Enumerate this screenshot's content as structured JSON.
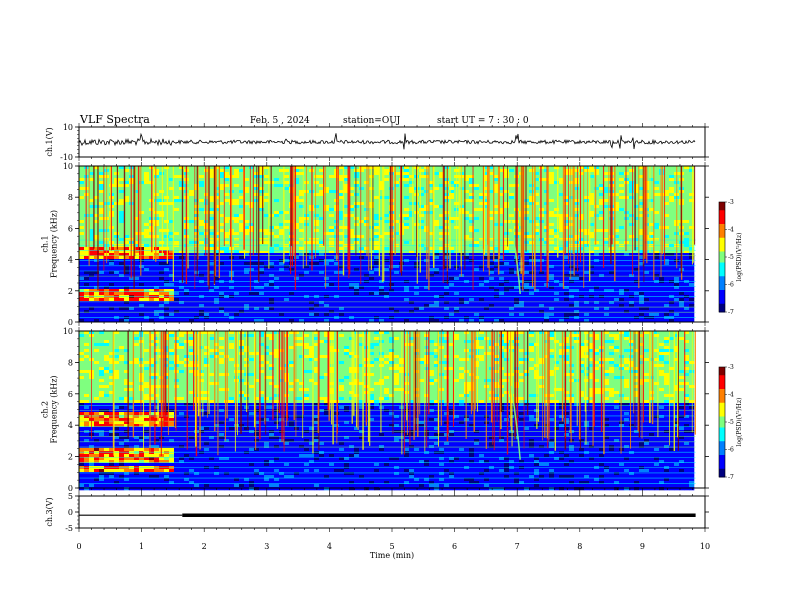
{
  "header": {
    "title": "VLF Spectra",
    "date": "Feb. 5  , 2024",
    "station": "station=OUJ",
    "start": "start  UT  =   7 : 30 : 0"
  },
  "chart_data": {
    "type": "heatmap",
    "x_axis": {
      "label": "Time  (min)",
      "range": [
        0,
        10
      ],
      "ticks": [
        "0",
        "1",
        "2",
        "3",
        "4",
        "5",
        "6",
        "7",
        "8",
        "9",
        "10"
      ]
    },
    "panels": [
      {
        "id": "ch1-waveform",
        "kind": "waveform",
        "ylabel": "ch.1(V)",
        "ylim": [
          -10,
          10
        ],
        "yticks": [
          "10",
          "-10"
        ],
        "baseline": 0,
        "spikes_min": [
          1.0,
          3.3,
          4.1,
          5.2,
          7.0,
          8.5,
          8.65,
          8.85,
          9.1
        ]
      },
      {
        "id": "ch1-spectrogram",
        "kind": "spectrogram",
        "ylabel": "ch.1\nFrequency  (kHz)",
        "ylim": [
          0,
          10
        ],
        "yticks": [
          "0",
          "2",
          "4",
          "6",
          "8",
          "10"
        ],
        "colorbar": {
          "label": "log(PSD)(V²/Hz)",
          "range": [
            -7,
            -3
          ],
          "ticks": [
            "-3",
            "-4",
            "-5",
            "-6",
            "-7"
          ]
        },
        "bright_band_until_min": 1.5,
        "bright_bands_khz": [
          1.6,
          1.9,
          4.2,
          4.5
        ],
        "noise_floor_khz": 4.5,
        "whistler_min": 7.0
      },
      {
        "id": "ch2-spectrogram",
        "kind": "spectrogram",
        "ylabel": "ch.2\nFrequency  (kHz)",
        "ylim": [
          0,
          10
        ],
        "yticks": [
          "0",
          "2",
          "4",
          "6",
          "8",
          "10"
        ],
        "colorbar": {
          "label": "log(PSD)(V²/Hz)",
          "range": [
            -7,
            -3
          ],
          "ticks": [
            "-3",
            "-4",
            "-5",
            "-6",
            "-7"
          ]
        },
        "bright_band_until_min": 1.5,
        "bright_bands_khz": [
          1.2,
          1.8,
          2.3,
          4.1,
          4.5
        ],
        "band_khz": [
          6.0,
          6.8
        ],
        "whistler_min": 7.0
      },
      {
        "id": "ch3-waveform",
        "kind": "waveform",
        "ylabel": "ch.3(V)",
        "ylim": [
          -5,
          5
        ],
        "yticks": [
          "5",
          "0",
          "-5"
        ],
        "level_v": -1,
        "thick_from_min": 1.65
      }
    ]
  },
  "colors": {
    "jet": [
      "#00007f",
      "#0000ff",
      "#007fff",
      "#00ffff",
      "#7fff7f",
      "#ffff00",
      "#ff7f00",
      "#ff0000",
      "#7f0000"
    ]
  }
}
